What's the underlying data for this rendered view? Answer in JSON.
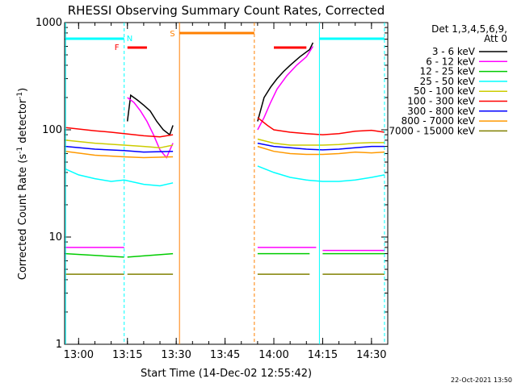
{
  "chart_data": {
    "type": "line",
    "title": "RHESSI Observing Summary Count Rates, Corrected",
    "xlabel": "Start Time (14-Dec-02 12:55:42)",
    "ylabel_main": "Corrected Count Rate (s",
    "ylabel_sup1": "-1",
    "ylabel_mid": " detector",
    "ylabel_sup2": "-1",
    "ylabel_end": ")",
    "y_scale": "log",
    "ylim": [
      1,
      1000
    ],
    "xlim": [
      "12:55:42",
      "14:35"
    ],
    "x_ticks": [
      "13:00",
      "13:15",
      "13:30",
      "13:45",
      "14:00",
      "14:15",
      "14:30"
    ],
    "y_ticks": [
      "1",
      "10",
      "100",
      "1000"
    ],
    "legend_header_1": "Det 1,3,4,5,6,9,",
    "legend_header_2": "Att 0",
    "legend_position": "top-right",
    "annotations": {
      "flare": "F",
      "saa": "S",
      "night": "N"
    },
    "footer_date": "22-Oct-2021 13:50",
    "series": [
      {
        "name": "3 - 6 keV",
        "color": "#000000",
        "segments": [
          [
            [
              "13:15",
              120
            ],
            [
              "13:16",
              210
            ],
            [
              "13:18",
              190
            ],
            [
              "13:20",
              170
            ],
            [
              "13:22",
              150
            ],
            [
              "13:24",
              120
            ],
            [
              "13:26",
              100
            ],
            [
              "13:28",
              90
            ],
            [
              "13:29",
              110
            ]
          ],
          [
            [
              "13:55",
              120
            ],
            [
              "13:57",
              200
            ],
            [
              "13:59",
              250
            ],
            [
              "14:01",
              300
            ],
            [
              "14:03",
              350
            ],
            [
              "14:05",
              400
            ],
            [
              "14:08",
              480
            ],
            [
              "14:11",
              560
            ],
            [
              "14:12",
              650
            ]
          ]
        ]
      },
      {
        "name": "6 - 12 keV",
        "color": "#ff00ff",
        "segments": [
          [
            [
              "12:56",
              8
            ],
            [
              "13:14",
              8
            ]
          ],
          [
            [
              "13:15",
              200
            ],
            [
              "13:17",
              180
            ],
            [
              "13:19",
              150
            ],
            [
              "13:21",
              120
            ],
            [
              "13:23",
              90
            ],
            [
              "13:25",
              65
            ],
            [
              "13:27",
              55
            ],
            [
              "13:29",
              75
            ]
          ],
          [
            [
              "13:55",
              100
            ],
            [
              "13:57",
              130
            ],
            [
              "13:59",
              180
            ],
            [
              "14:01",
              240
            ],
            [
              "14:04",
              320
            ],
            [
              "14:07",
              400
            ],
            [
              "14:10",
              480
            ],
            [
              "14:12",
              600
            ]
          ],
          [
            [
              "13:55",
              8
            ],
            [
              "14:13",
              8
            ]
          ],
          [
            [
              "14:15",
              7.5
            ],
            [
              "14:34",
              7.5
            ]
          ]
        ]
      },
      {
        "name": "12 - 25 keV",
        "color": "#00cc00",
        "segments": [
          [
            [
              "12:56",
              7
            ],
            [
              "13:14",
              6.5
            ]
          ],
          [
            [
              "13:15",
              6.5
            ],
            [
              "13:29",
              7
            ]
          ],
          [
            [
              "13:55",
              7
            ],
            [
              "14:11",
              7
            ]
          ],
          [
            [
              "14:15",
              7
            ],
            [
              "14:34",
              7
            ]
          ]
        ]
      },
      {
        "name": "25 - 50 keV",
        "color": "#00ffff",
        "segments": [
          [
            [
              "12:56",
              43
            ],
            [
              "13:00",
              38
            ],
            [
              "13:05",
              35
            ],
            [
              "13:10",
              33
            ],
            [
              "13:14",
              34
            ],
            [
              "13:20",
              31
            ],
            [
              "13:25",
              30
            ],
            [
              "13:29",
              32
            ]
          ],
          [
            [
              "13:55",
              46
            ],
            [
              "14:00",
              40
            ],
            [
              "14:05",
              36
            ],
            [
              "14:10",
              34
            ],
            [
              "14:15",
              33
            ],
            [
              "14:20",
              33
            ],
            [
              "14:25",
              34
            ],
            [
              "14:30",
              36
            ],
            [
              "14:34",
              38
            ]
          ]
        ]
      },
      {
        "name": "50 - 100 keV",
        "color": "#cccc00",
        "segments": [
          [
            [
              "12:56",
              80
            ],
            [
              "13:05",
              75
            ],
            [
              "13:14",
              72
            ],
            [
              "13:20",
              70
            ],
            [
              "13:25",
              68
            ],
            [
              "13:29",
              72
            ]
          ],
          [
            [
              "13:55",
              82
            ],
            [
              "14:00",
              75
            ],
            [
              "14:05",
              72
            ],
            [
              "14:10",
              72
            ],
            [
              "14:15",
              72
            ],
            [
              "14:20",
              73
            ],
            [
              "14:25",
              75
            ],
            [
              "14:30",
              76
            ],
            [
              "14:34",
              76
            ]
          ]
        ]
      },
      {
        "name": "100 - 300 keV",
        "color": "#ff0000",
        "segments": [
          [
            [
              "12:56",
              105
            ],
            [
              "13:05",
              98
            ],
            [
              "13:10",
              95
            ],
            [
              "13:14",
              92
            ],
            [
              "13:20",
              88
            ],
            [
              "13:25",
              86
            ],
            [
              "13:29",
              90
            ]
          ],
          [
            [
              "13:55",
              130
            ],
            [
              "13:58",
              110
            ],
            [
              "14:00",
              100
            ],
            [
              "14:05",
              95
            ],
            [
              "14:10",
              92
            ],
            [
              "14:15",
              90
            ],
            [
              "14:20",
              92
            ],
            [
              "14:25",
              97
            ],
            [
              "14:30",
              99
            ],
            [
              "14:34",
              95
            ]
          ]
        ]
      },
      {
        "name": "300 - 800 keV",
        "color": "#0000ff",
        "segments": [
          [
            [
              "12:56",
              70
            ],
            [
              "13:05",
              66
            ],
            [
              "13:14",
              64
            ],
            [
              "13:20",
              62
            ],
            [
              "13:29",
              63
            ]
          ],
          [
            [
              "13:55",
              75
            ],
            [
              "14:00",
              70
            ],
            [
              "14:05",
              68
            ],
            [
              "14:10",
              66
            ],
            [
              "14:15",
              65
            ],
            [
              "14:20",
              66
            ],
            [
              "14:25",
              68
            ],
            [
              "14:30",
              70
            ],
            [
              "14:34",
              70
            ]
          ]
        ]
      },
      {
        "name": "800 - 7000 keV",
        "color": "#ff9900",
        "segments": [
          [
            [
              "12:56",
              63
            ],
            [
              "13:05",
              58
            ],
            [
              "13:14",
              56
            ],
            [
              "13:20",
              55
            ],
            [
              "13:29",
              56
            ]
          ],
          [
            [
              "13:55",
              70
            ],
            [
              "14:00",
              63
            ],
            [
              "14:05",
              60
            ],
            [
              "14:10",
              59
            ],
            [
              "14:15",
              59
            ],
            [
              "14:20",
              60
            ],
            [
              "14:25",
              62
            ],
            [
              "14:30",
              61
            ],
            [
              "14:34",
              62
            ]
          ]
        ]
      },
      {
        "name": "7000 - 15000 keV",
        "color": "#808000",
        "segments": [
          [
            [
              "12:56",
              4.5
            ],
            [
              "13:14",
              4.5
            ]
          ],
          [
            [
              "13:15",
              4.5
            ],
            [
              "13:29",
              4.5
            ]
          ],
          [
            [
              "13:55",
              4.5
            ],
            [
              "14:11",
              4.5
            ]
          ],
          [
            [
              "14:15",
              4.5
            ],
            [
              "14:34",
              4.5
            ]
          ]
        ]
      }
    ]
  }
}
